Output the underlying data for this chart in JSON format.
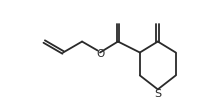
{
  "bg_color": "#ffffff",
  "line_color": "#2a2a2a",
  "line_width": 1.3,
  "S_label": "S",
  "O_label": "O",
  "font_size": 7.5,
  "atom_font_color": "#2a2a2a",
  "xlim": [
    0,
    10
  ],
  "ylim": [
    0,
    5.5
  ]
}
